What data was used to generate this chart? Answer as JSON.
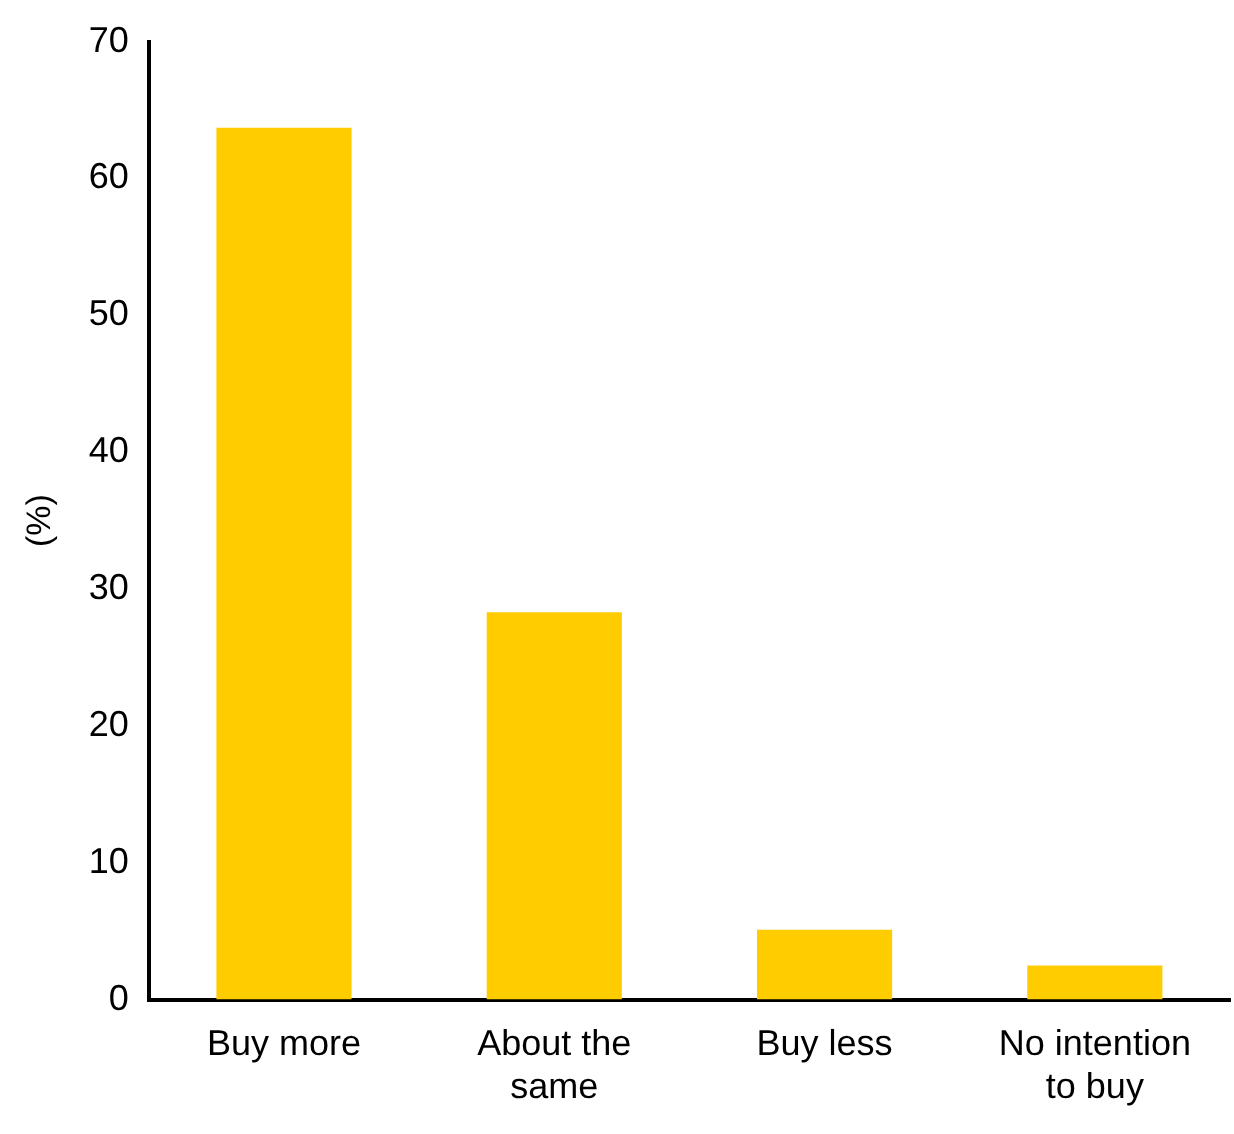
{
  "chart_data": {
    "type": "bar",
    "ylabel": "(%)",
    "categories": [
      "Buy more",
      "About the same",
      "Buy less",
      "No intention to buy"
    ],
    "values": [
      63.7,
      28.3,
      5.1,
      2.5
    ],
    "color": "#ffcc00",
    "ylim": [
      0,
      70
    ],
    "yticks": [
      0,
      10,
      20,
      30,
      40,
      50,
      60,
      70
    ],
    "grid": false,
    "legend": false
  }
}
